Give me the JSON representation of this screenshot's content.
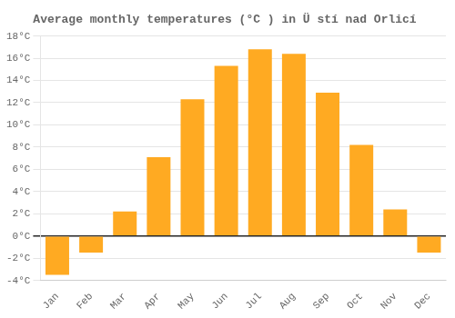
{
  "chart_data": {
    "type": "bar",
    "title": "Average monthly temperatures (°C ) in Ü stí nad Orlicí",
    "categories": [
      "Jan",
      "Feb",
      "Mar",
      "Apr",
      "May",
      "Jun",
      "Jul",
      "Aug",
      "Sep",
      "Oct",
      "Nov",
      "Dec"
    ],
    "values": [
      -3.5,
      -1.5,
      2.2,
      7.1,
      12.3,
      15.3,
      16.8,
      16.4,
      12.9,
      8.2,
      2.4,
      -1.5
    ],
    "color": "#FFAA22",
    "ylim": [
      -4,
      18
    ],
    "yticks": [
      {
        "value": -4,
        "label": "-4°C"
      },
      {
        "value": -2,
        "label": "-2°C"
      },
      {
        "value": 0,
        "label": "0°C"
      },
      {
        "value": 2,
        "label": "2°C"
      },
      {
        "value": 4,
        "label": "4°C"
      },
      {
        "value": 6,
        "label": "6°C"
      },
      {
        "value": 8,
        "label": "8°C"
      },
      {
        "value": 10,
        "label": "10°C"
      },
      {
        "value": 12,
        "label": "12°C"
      },
      {
        "value": 14,
        "label": "14°C"
      },
      {
        "value": 16,
        "label": "16°C"
      },
      {
        "value": 18,
        "label": "18°C"
      }
    ],
    "grid": true
  }
}
